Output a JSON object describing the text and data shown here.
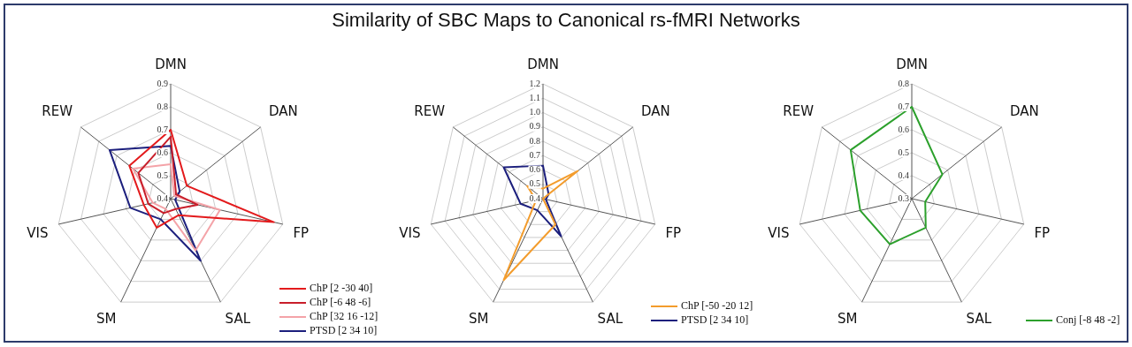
{
  "chart_data": [
    {
      "type": "radar",
      "title": "Similarity of SBC Maps to Canonical rs-fMRI Networks",
      "categories": [
        "DMN",
        "DAN",
        "FP",
        "SAL",
        "SM",
        "VIS",
        "REW"
      ],
      "ylim": [
        0.4,
        0.9
      ],
      "yticks": [
        0.4,
        0.5,
        0.6,
        0.7,
        0.8,
        0.9
      ],
      "grid": true,
      "legend": "bottom right",
      "marker": "none",
      "line_style": "solid",
      "series": [
        {
          "name": "ChP [2 -30 40]",
          "color": "#e31a1c",
          "values": [
            0.7,
            0.49,
            0.86,
            0.48,
            0.54,
            0.52,
            0.63
          ]
        },
        {
          "name": "ChP [-6 48 -6]",
          "color": "#c81e2a",
          "values": [
            0.67,
            0.43,
            0.52,
            0.45,
            0.47,
            0.5,
            0.58
          ]
        },
        {
          "name": "ChP [32 16 -12]",
          "color": "#f4a3a8",
          "values": [
            0.55,
            0.42,
            0.62,
            0.65,
            0.45,
            0.48,
            0.61
          ]
        },
        {
          "name": "PTSD [2 34 10]",
          "color": "#1c1f7d",
          "values": [
            0.63,
            0.45,
            0.42,
            0.7,
            0.5,
            0.58,
            0.74
          ]
        }
      ]
    },
    {
      "type": "radar",
      "categories": [
        "DMN",
        "DAN",
        "FP",
        "SAL",
        "SM",
        "VIS",
        "REW"
      ],
      "ylim": [
        0.4,
        1.2
      ],
      "yticks": [
        0.4,
        0.5,
        0.6,
        0.7,
        0.8,
        0.9,
        {
          "value": 1,
          "label": "1.0"
        },
        1.1,
        1.2
      ],
      "grid": true,
      "legend": "bottom right",
      "marker": "none",
      "line_style": "solid",
      "series": [
        {
          "name": "ChP [-50 -20 12]",
          "color": "#f39c2c",
          "values": [
            0.47,
            0.71,
            0.4,
            0.6,
            1.03,
            0.45,
            0.54
          ]
        },
        {
          "name": "PTSD [2 34 10]",
          "color": "#1c1f7d",
          "values": [
            0.63,
            0.45,
            0.42,
            0.69,
            0.49,
            0.56,
            0.75
          ]
        }
      ]
    },
    {
      "type": "radar",
      "categories": [
        "DMN",
        "DAN",
        "FP",
        "SAL",
        "SM",
        "VIS",
        "REW"
      ],
      "ylim": [
        0.3,
        0.8
      ],
      "yticks": [
        0.3,
        0.4,
        0.5,
        0.6,
        0.7,
        0.8
      ],
      "grid": true,
      "legend": "bottom right",
      "marker": "none",
      "line_style": "solid",
      "series": [
        {
          "name": "Conj [-8 48 -2]",
          "color": "#2ca02c",
          "values": [
            0.7,
            0.47,
            0.36,
            0.44,
            0.52,
            0.53,
            0.64
          ]
        }
      ]
    }
  ]
}
